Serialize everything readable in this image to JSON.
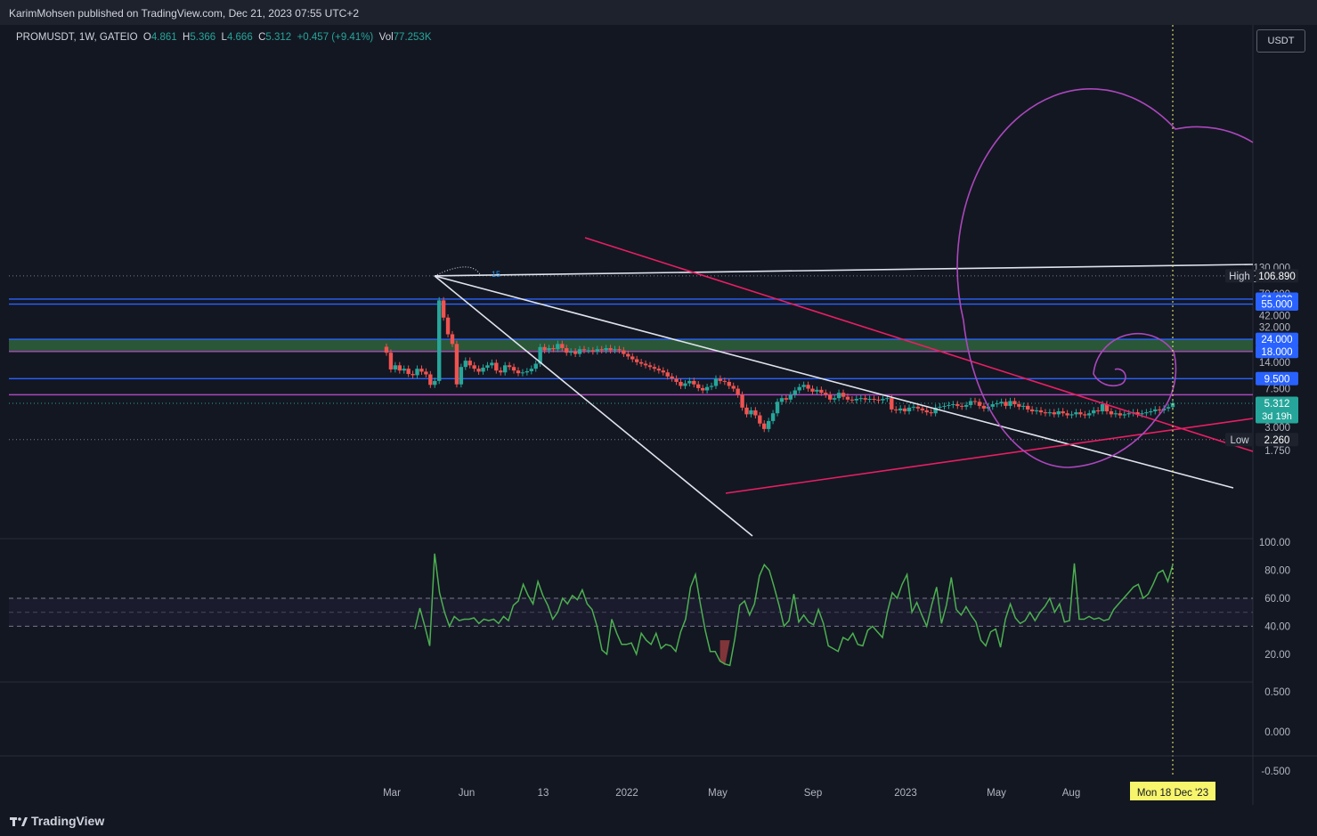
{
  "header": {
    "published": "KarimMohsen published on TradingView.com, Dec 21, 2023 07:55 UTC+2"
  },
  "symbol_bar": {
    "symbol": "PROMUSDT, 1W, GATEIO",
    "o_label": "O",
    "o": "4.861",
    "h_label": "H",
    "h": "5.366",
    "l_label": "L",
    "l": "4.666",
    "c_label": "C",
    "c": "5.312",
    "change": "+0.457 (+9.41%)",
    "vol_label": "Vol",
    "vol": "77.253K"
  },
  "currency_button": "USDT",
  "footer": {
    "brand": "TradingView"
  },
  "colors": {
    "bg": "#131722",
    "up": "#26a69a",
    "down": "#ef5350",
    "blue_level": "#2962ff",
    "pink": "#e91e63",
    "magenta": "#ab47bc",
    "green_zone": "#2e5e3a",
    "rsi": "#4caf50",
    "white_line": "#e0e3eb",
    "cursor": "#f7f56c"
  },
  "chart_data": [
    {
      "type": "candlestick",
      "title": "",
      "yscale": "log",
      "price_axis_ticks": [
        "130.000",
        "100.000",
        "70.000",
        "42.000",
        "32.000",
        "14.000",
        "10.000",
        "7.500",
        "4.000",
        "3.000",
        "1.750"
      ],
      "time_axis_labels": [
        "Mar",
        "Jun",
        "13",
        "2022",
        "May",
        "Sep",
        "2023",
        "May",
        "Aug"
      ],
      "cursor_date_label": "Mon 18 Dec '23",
      "price_labels": [
        {
          "text": "High",
          "value": "106.890"
        },
        {
          "text": "",
          "value": "61.820"
        },
        {
          "text": "",
          "value": "55.000"
        },
        {
          "text": "",
          "value": "24.000"
        },
        {
          "text": "",
          "value": "18.000"
        },
        {
          "text": "",
          "value": "9.500"
        },
        {
          "text": "",
          "value": "5.312",
          "sub": "3d 19h"
        },
        {
          "text": "Low",
          "value": "2.260"
        }
      ],
      "horizontal_levels": [
        61.82,
        55.0,
        24.0,
        18.0,
        9.5,
        6.5
      ],
      "zone": [
        18.0,
        24.0
      ],
      "fib_label": "15",
      "close_series": [
        17.5,
        11.8,
        13.0,
        11.5,
        12.0,
        10.6,
        10.3,
        12.0,
        11.2,
        10.5,
        8.2,
        9.0,
        60.0,
        40.0,
        27.0,
        21.5,
        8.3,
        12.5,
        14.5,
        13.0,
        12.0,
        11.2,
        12.3,
        13.0,
        13.8,
        11.5,
        11.0,
        13.0,
        12.5,
        11.5,
        10.8,
        11.0,
        11.3,
        12.0,
        13.5,
        20.0,
        18.5,
        19.5,
        19.0,
        21.5,
        19.5,
        17.5,
        18.0,
        17.0,
        19.0,
        18.5,
        18.5,
        18.0,
        19.0,
        18.5,
        19.5,
        18.5,
        19.0,
        18.5,
        17.0,
        16.0,
        15.0,
        14.0,
        13.5,
        13.0,
        12.5,
        12.0,
        11.5,
        11.0,
        10.0,
        9.5,
        8.8,
        8.0,
        8.5,
        9.0,
        8.3,
        7.6,
        7.2,
        7.8,
        8.0,
        9.5,
        9.0,
        8.8,
        8.0,
        7.5,
        6.5,
        4.8,
        4.1,
        4.5,
        4.0,
        3.3,
        2.9,
        3.5,
        4.2,
        5.5,
        6.0,
        5.8,
        6.5,
        7.2,
        7.8,
        8.2,
        7.5,
        7.0,
        7.3,
        6.8,
        6.5,
        5.8,
        6.0,
        6.8,
        6.2,
        5.8,
        5.7,
        5.9,
        6.0,
        5.8,
        5.9,
        5.8,
        5.7,
        5.9,
        6.0,
        4.6,
        4.5,
        4.7,
        4.4,
        4.8,
        4.9,
        4.7,
        4.5,
        4.3,
        4.2,
        4.8,
        4.9,
        5.0,
        5.1,
        5.2,
        5.0,
        4.9,
        5.1,
        5.6,
        5.5,
        5.0,
        4.7,
        4.9,
        5.2,
        5.3,
        5.5,
        5.0,
        5.6,
        5.2,
        4.9,
        5.0,
        4.6,
        4.4,
        4.5,
        4.3,
        4.2,
        4.3,
        4.1,
        4.4,
        4.2,
        4.0,
        4.1,
        4.3,
        4.1,
        4.0,
        4.2,
        4.5,
        4.4,
        5.2,
        4.4,
        4.1,
        4.2,
        4.0,
        4.1,
        4.2,
        4.3,
        4.1,
        4.2,
        4.3,
        4.4,
        4.6,
        4.5,
        4.7,
        4.861,
        5.312
      ]
    },
    {
      "type": "line",
      "title": "",
      "yticks": [
        "100.00",
        "80.00",
        "60.00",
        "40.00",
        "20.00"
      ],
      "bands": [
        60,
        50,
        40
      ],
      "values": [
        38,
        53,
        40,
        26,
        92,
        64,
        50,
        40,
        47,
        44,
        45,
        45,
        46,
        42,
        45,
        44,
        45,
        42,
        47,
        44,
        55,
        58,
        70,
        62,
        56,
        72,
        62,
        55,
        45,
        50,
        60,
        56,
        62,
        59,
        66,
        56,
        52,
        40,
        23,
        20,
        45,
        35,
        27,
        27,
        28,
        20,
        35,
        30,
        27,
        35,
        24,
        27,
        26,
        22,
        36,
        45,
        68,
        77,
        56,
        37,
        22,
        22,
        15,
        13,
        12,
        31,
        55,
        58,
        48,
        56,
        76,
        84,
        80,
        68,
        55,
        40,
        44,
        63,
        43,
        48,
        43,
        41,
        52,
        42,
        26,
        24,
        22,
        32,
        30,
        35,
        27,
        26,
        37,
        40,
        36,
        32,
        50,
        64,
        60,
        70,
        77,
        50,
        57,
        48,
        40,
        55,
        68,
        42,
        55,
        75,
        52,
        48,
        54,
        48,
        43,
        30,
        26,
        36,
        38,
        25,
        45,
        56,
        46,
        42,
        44,
        50,
        44,
        50,
        54,
        60,
        50,
        56,
        43,
        44,
        85,
        45,
        45,
        47,
        45,
        46,
        44,
        45,
        52,
        56,
        60,
        64,
        68,
        70,
        60,
        63,
        70,
        78,
        80,
        72,
        84
      ]
    },
    {
      "type": "line",
      "title": "",
      "yticks": [
        "0.500",
        "0.000",
        "-0.500"
      ],
      "values": []
    }
  ]
}
